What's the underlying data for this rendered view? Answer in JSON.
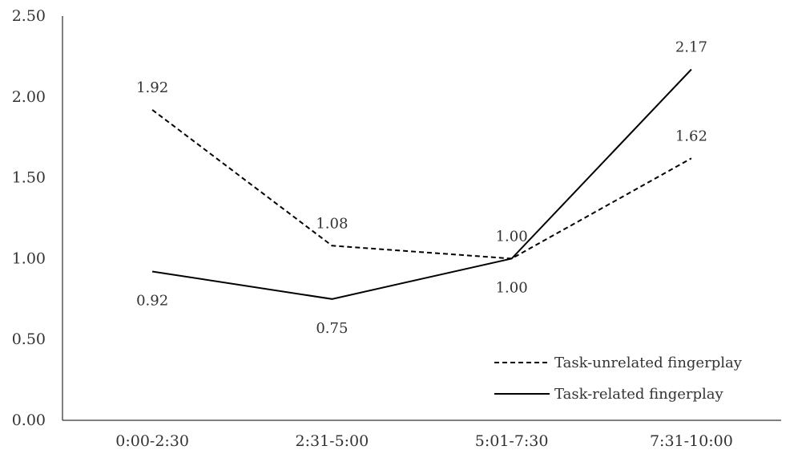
{
  "chart_data": {
    "type": "line",
    "categories": [
      "0:00-2:30",
      "2:31-5:00",
      "5:01-7:30",
      "7:31-10:00"
    ],
    "series": [
      {
        "name": "Task-unrelated fingerplay",
        "values": [
          1.92,
          1.08,
          1.0,
          1.62
        ],
        "style": "dashed",
        "color": "#000000"
      },
      {
        "name": "Task-related fingerplay",
        "values": [
          0.92,
          0.75,
          1.0,
          2.17
        ],
        "style": "solid",
        "color": "#000000"
      }
    ],
    "data_labels": [
      [
        "1.92",
        "1.08",
        "1.00",
        "1.62"
      ],
      [
        "0.92",
        "0.75",
        "1.00",
        "2.17"
      ]
    ],
    "y_ticks": [
      "0.00",
      "0.50",
      "1.00",
      "1.50",
      "2.00",
      "2.50"
    ],
    "ylim": [
      0,
      2.5
    ],
    "grid": false,
    "legend_position": "bottom-right",
    "title": "",
    "xlabel": "",
    "ylabel": ""
  }
}
